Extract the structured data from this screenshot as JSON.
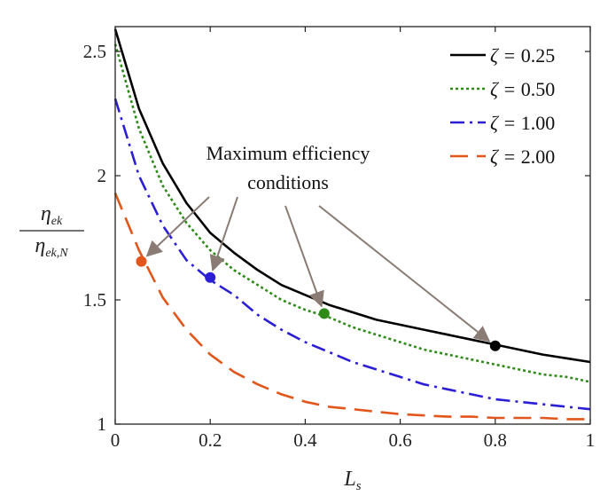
{
  "chart_data": {
    "type": "line",
    "xlabel": "L_s",
    "ylabel_num": "η_ek",
    "ylabel_den": "η_ek,N",
    "xlim": [
      0,
      1
    ],
    "ylim": [
      1,
      2.6
    ],
    "xticks": [
      0,
      0.2,
      0.4,
      0.6,
      0.8,
      1
    ],
    "xtick_labels": [
      "0",
      "0.2",
      "0.4",
      "0.6",
      "0.8",
      "1"
    ],
    "yticks": [
      1,
      1.5,
      2,
      2.5
    ],
    "ytick_labels": [
      "1",
      "1.5",
      "2",
      "2.5"
    ],
    "grid": false,
    "legend_position": "top-right",
    "legend_prefix": "ζ = ",
    "series": [
      {
        "name": "0.25",
        "color": "#000000",
        "style": "solid",
        "x": [
          0,
          0.05,
          0.1,
          0.15,
          0.2,
          0.25,
          0.3,
          0.35,
          0.4,
          0.45,
          0.5,
          0.55,
          0.6,
          0.65,
          0.7,
          0.75,
          0.8,
          0.85,
          0.9,
          0.95,
          1.0
        ],
        "y": [
          2.59,
          2.27,
          2.05,
          1.89,
          1.77,
          1.69,
          1.62,
          1.56,
          1.52,
          1.48,
          1.45,
          1.42,
          1.4,
          1.38,
          1.36,
          1.34,
          1.32,
          1.3,
          1.28,
          1.265,
          1.25
        ]
      },
      {
        "name": "0.50",
        "color": "#2e8b19",
        "style": "dotted",
        "x": [
          0,
          0.05,
          0.1,
          0.15,
          0.2,
          0.25,
          0.3,
          0.35,
          0.4,
          0.45,
          0.5,
          0.55,
          0.6,
          0.65,
          0.7,
          0.75,
          0.8,
          0.85,
          0.9,
          0.95,
          1.0
        ],
        "y": [
          2.53,
          2.19,
          1.96,
          1.81,
          1.7,
          1.62,
          1.56,
          1.5,
          1.46,
          1.43,
          1.39,
          1.36,
          1.33,
          1.3,
          1.28,
          1.26,
          1.24,
          1.22,
          1.2,
          1.19,
          1.17
        ]
      },
      {
        "name": "1.00",
        "color": "#2b1fd6",
        "style": "dashdot",
        "x": [
          0,
          0.05,
          0.1,
          0.15,
          0.2,
          0.25,
          0.3,
          0.35,
          0.4,
          0.45,
          0.5,
          0.55,
          0.6,
          0.65,
          0.7,
          0.75,
          0.8,
          0.85,
          0.9,
          0.95,
          1.0
        ],
        "y": [
          2.31,
          2.0,
          1.8,
          1.66,
          1.58,
          1.52,
          1.44,
          1.38,
          1.33,
          1.29,
          1.25,
          1.22,
          1.19,
          1.16,
          1.14,
          1.12,
          1.1,
          1.09,
          1.08,
          1.07,
          1.06
        ]
      },
      {
        "name": "2.00",
        "color": "#e2561b",
        "style": "dashed",
        "x": [
          0,
          0.05,
          0.1,
          0.15,
          0.2,
          0.25,
          0.3,
          0.35,
          0.4,
          0.45,
          0.5,
          0.55,
          0.6,
          0.65,
          0.7,
          0.75,
          0.8,
          0.85,
          0.9,
          0.95,
          1.0
        ],
        "y": [
          1.93,
          1.7,
          1.51,
          1.38,
          1.28,
          1.21,
          1.16,
          1.12,
          1.09,
          1.07,
          1.06,
          1.05,
          1.04,
          1.035,
          1.03,
          1.03,
          1.025,
          1.025,
          1.025,
          1.02,
          1.02
        ]
      }
    ],
    "markers": [
      {
        "series": "0.25",
        "x": 0.8,
        "y": 1.315,
        "color": "#000000"
      },
      {
        "series": "0.50",
        "x": 0.44,
        "y": 1.445,
        "color": "#2e8b19"
      },
      {
        "series": "1.00",
        "x": 0.2,
        "y": 1.59,
        "color": "#2b1fd6"
      },
      {
        "series": "2.00",
        "x": 0.055,
        "y": 1.655,
        "color": "#e2561b"
      }
    ],
    "annotation": {
      "line1": "Maximum efficiency",
      "line2": "conditions",
      "arrow_color": "#8a7c74"
    }
  }
}
